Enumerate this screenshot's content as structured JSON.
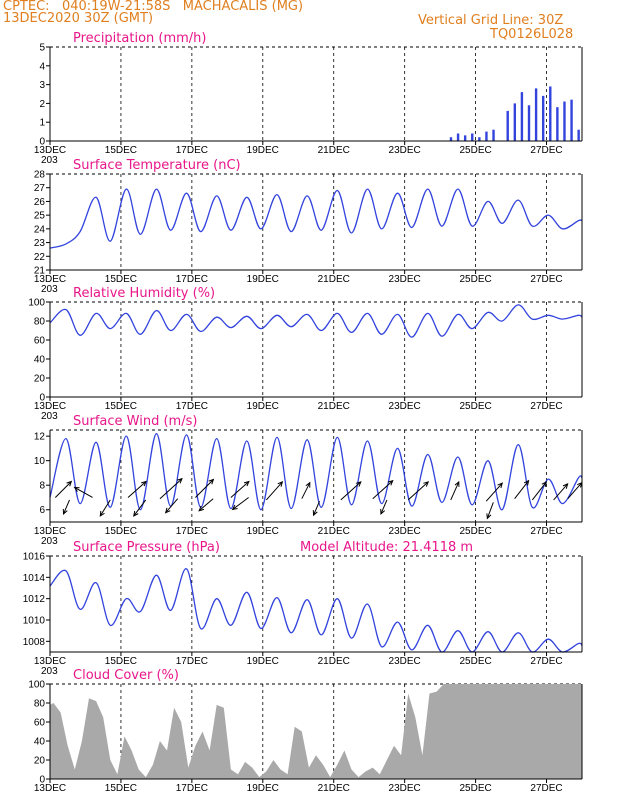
{
  "header": {
    "source": "CPTEC:",
    "location": "040:19W-21:58S   MACHACALIS (MG)",
    "run": "13DEC2020 30Z (GMT)",
    "grid_note": "Vertical Grid Line: 30Z",
    "code": "TQ0126L028"
  },
  "colors": {
    "line": "#3344dd",
    "title": "#e8168a",
    "header": "#e07f1f",
    "cloud": "#a9a9a9",
    "arrow": "#000000"
  },
  "chart_data": [
    {
      "id": "precip",
      "type": "bar",
      "title": "Precipitation (mm/h)",
      "ylim": [
        0,
        5
      ],
      "yticks": [
        "0",
        "1",
        "2",
        "3",
        "4",
        "5"
      ],
      "xlabels": [
        "13DEC",
        "15DEC",
        "17DEC",
        "19DEC",
        "21DEC",
        "23DEC",
        "25DEC",
        "27DEC"
      ],
      "xlabel_left_extra": "203",
      "x": [
        24.3,
        24.5,
        24.7,
        24.9,
        25.1,
        25.3,
        25.5,
        25.9,
        26.1,
        26.3,
        26.5,
        26.7,
        26.9,
        27.1,
        27.3,
        27.5,
        27.7,
        27.9
      ],
      "values": [
        0.2,
        0.4,
        0.3,
        0.4,
        0.2,
        0.5,
        0.6,
        1.6,
        2.0,
        2.6,
        1.9,
        2.8,
        2.4,
        2.9,
        1.8,
        2.1,
        2.2,
        0.6
      ]
    },
    {
      "id": "temp",
      "type": "line",
      "title": "Surface Temperature (nC)",
      "ylim": [
        21,
        28
      ],
      "yticks": [
        "21",
        "22",
        "23",
        "24",
        "25",
        "26",
        "27",
        "28"
      ],
      "xlabels": [
        "13DEC",
        "15DEC",
        "17DEC",
        "19DEC",
        "21DEC",
        "23DEC",
        "25DEC",
        "27DEC"
      ],
      "xlabel_left_extra": "203",
      "max": [
        22.9,
        26.3,
        26.9,
        26.9,
        26.6,
        26.4,
        26.3,
        26.5,
        26.4,
        26.8,
        26.9,
        26.6,
        26.9,
        26.9,
        26.0,
        26.1,
        25.0,
        24.6
      ],
      "min": [
        22.6,
        23.8,
        23.1,
        23.6,
        23.9,
        23.8,
        23.9,
        24.0,
        23.8,
        23.9,
        23.7,
        24.0,
        24.1,
        24.2,
        24.2,
        24.4,
        24.2,
        24.0
      ],
      "end": 24.6
    },
    {
      "id": "rh",
      "type": "line",
      "title": "Relative Humidity (%)",
      "ylim": [
        0,
        100
      ],
      "yticks": [
        "0",
        "20",
        "40",
        "60",
        "80",
        "100"
      ],
      "xlabels": [
        "13DEC",
        "15DEC",
        "17DEC",
        "19DEC",
        "21DEC",
        "23DEC",
        "25DEC",
        "27DEC"
      ],
      "xlabel_left_extra": "203",
      "max": [
        92,
        88,
        88,
        91,
        87,
        84,
        85,
        86,
        87,
        88,
        88,
        87,
        88,
        87,
        89,
        97,
        86,
        86
      ],
      "min": [
        78,
        65,
        72,
        66,
        70,
        69,
        73,
        72,
        74,
        70,
        68,
        66,
        63,
        64,
        72,
        80,
        82,
        82
      ],
      "end": 84
    },
    {
      "id": "wind",
      "type": "line",
      "title": "Surface Wind (m/s)",
      "ylim": [
        5,
        12.5
      ],
      "yticks": [
        "6",
        "8",
        "10",
        "12"
      ],
      "xlabels": [
        "13DEC",
        "15DEC",
        "17DEC",
        "19DEC",
        "21DEC",
        "23DEC",
        "25DEC",
        "27DEC"
      ],
      "xlabel_left_extra": "203",
      "max": [
        11.8,
        11.5,
        12.0,
        12.2,
        12.1,
        11.8,
        11.6,
        11.9,
        11.7,
        11.9,
        11.6,
        11.0,
        10.5,
        10.3,
        10.0,
        11.3,
        8.5,
        8.6
      ],
      "min": [
        7.0,
        6.5,
        6.2,
        6.0,
        6.3,
        6.2,
        6.1,
        6.0,
        6.1,
        6.2,
        6.4,
        6.5,
        6.3,
        6.6,
        6.4,
        6.0,
        6.2,
        6.5
      ],
      "end": 8.6,
      "arrows": [
        {
          "x": 13.15,
          "y": 7.0,
          "dx": 16,
          "dy": -16
        },
        {
          "x": 13.55,
          "y": 6.8,
          "dx": -6,
          "dy": 14
        },
        {
          "x": 14.2,
          "y": 7.0,
          "dx": -18,
          "dy": -10
        },
        {
          "x": 14.7,
          "y": 6.8,
          "dx": -10,
          "dy": 16
        },
        {
          "x": 15.2,
          "y": 7.0,
          "dx": 18,
          "dy": -16
        },
        {
          "x": 15.7,
          "y": 6.8,
          "dx": -12,
          "dy": 16
        },
        {
          "x": 16.1,
          "y": 6.9,
          "dx": 22,
          "dy": -20
        },
        {
          "x": 16.6,
          "y": 6.9,
          "dx": -12,
          "dy": 14
        },
        {
          "x": 17.1,
          "y": 7.0,
          "dx": 18,
          "dy": -18
        },
        {
          "x": 17.6,
          "y": 6.9,
          "dx": -14,
          "dy": 12
        },
        {
          "x": 18.1,
          "y": 7.0,
          "dx": 18,
          "dy": -16
        },
        {
          "x": 18.6,
          "y": 7.0,
          "dx": -16,
          "dy": 12
        },
        {
          "x": 19.1,
          "y": 6.8,
          "dx": 16,
          "dy": -18
        },
        {
          "x": 20.1,
          "y": 6.9,
          "dx": 8,
          "dy": -16
        },
        {
          "x": 20.6,
          "y": 6.7,
          "dx": -6,
          "dy": 14
        },
        {
          "x": 21.2,
          "y": 6.8,
          "dx": 20,
          "dy": -18
        },
        {
          "x": 22.1,
          "y": 6.9,
          "dx": 20,
          "dy": -18
        },
        {
          "x": 22.5,
          "y": 6.8,
          "dx": -6,
          "dy": 14
        },
        {
          "x": 23.1,
          "y": 6.8,
          "dx": 20,
          "dy": -18
        },
        {
          "x": 24.3,
          "y": 6.8,
          "dx": 8,
          "dy": -18
        },
        {
          "x": 25.3,
          "y": 6.7,
          "dx": 16,
          "dy": -18
        },
        {
          "x": 25.5,
          "y": 6.6,
          "dx": -6,
          "dy": 16
        },
        {
          "x": 26.1,
          "y": 6.9,
          "dx": 14,
          "dy": -18
        },
        {
          "x": 26.6,
          "y": 6.8,
          "dx": 14,
          "dy": -18
        },
        {
          "x": 27.2,
          "y": 6.8,
          "dx": 14,
          "dy": -16
        },
        {
          "x": 27.6,
          "y": 6.9,
          "dx": 14,
          "dy": -16
        }
      ]
    },
    {
      "id": "press",
      "type": "line",
      "title": "Surface Pressure (hPa)",
      "subtitle": "Model Altitude: 21.4118  m",
      "ylim": [
        1007,
        1016
      ],
      "yticks": [
        "1008",
        "1010",
        "1012",
        "1014",
        "1016"
      ],
      "xlabels": [
        "13DEC",
        "15DEC",
        "17DEC",
        "19DEC",
        "21DEC",
        "23DEC",
        "25DEC",
        "27DEC"
      ],
      "xlabel_left_extra": "203",
      "max": [
        1014.6,
        1013.5,
        1012.0,
        1014.2,
        1014.8,
        1012.0,
        1012.6,
        1012.1,
        1011.9,
        1012.0,
        1011.5,
        1009.8,
        1009.5,
        1009.0,
        1008.9,
        1008.8,
        1008.2,
        1007.8
      ],
      "min": [
        1013.2,
        1011.0,
        1009.5,
        1010.8,
        1010.9,
        1009.2,
        1009.5,
        1009.2,
        1008.8,
        1008.6,
        1008.3,
        1007.5,
        1007.2,
        1007.0,
        1006.9,
        1006.8,
        1006.9,
        1006.9
      ],
      "end": 1007.6
    },
    {
      "id": "cloud",
      "type": "area",
      "title": "Cloud Cover (%)",
      "ylim": [
        0,
        100
      ],
      "yticks": [
        "0",
        "20",
        "40",
        "60",
        "80",
        "100"
      ],
      "xlabels": [
        "13DEC",
        "15DEC",
        "17DEC",
        "19DEC",
        "21DEC",
        "23DEC",
        "25DEC",
        "27DEC"
      ],
      "x": [
        13.0,
        13.1,
        13.3,
        13.5,
        13.7,
        13.9,
        14.1,
        14.3,
        14.5,
        14.7,
        14.9,
        15.1,
        15.3,
        15.5,
        15.7,
        15.9,
        16.1,
        16.3,
        16.5,
        16.7,
        16.9,
        17.1,
        17.3,
        17.5,
        17.7,
        17.9,
        18.1,
        18.3,
        18.5,
        18.7,
        18.9,
        19.1,
        19.3,
        19.5,
        19.7,
        19.9,
        20.1,
        20.3,
        20.5,
        20.7,
        20.9,
        21.1,
        21.3,
        21.5,
        21.7,
        21.9,
        22.1,
        22.3,
        22.5,
        22.7,
        22.9,
        23.1,
        23.3,
        23.5,
        23.7,
        23.9,
        24.1,
        28.0
      ],
      "values": [
        78,
        80,
        70,
        35,
        10,
        40,
        85,
        82,
        65,
        20,
        5,
        45,
        30,
        10,
        2,
        15,
        40,
        30,
        75,
        60,
        12,
        35,
        50,
        30,
        78,
        75,
        10,
        5,
        18,
        12,
        2,
        8,
        20,
        10,
        5,
        55,
        50,
        12,
        25,
        15,
        2,
        15,
        30,
        10,
        2,
        8,
        12,
        5,
        20,
        35,
        25,
        90,
        65,
        25,
        90,
        92,
        100,
        100
      ]
    }
  ]
}
